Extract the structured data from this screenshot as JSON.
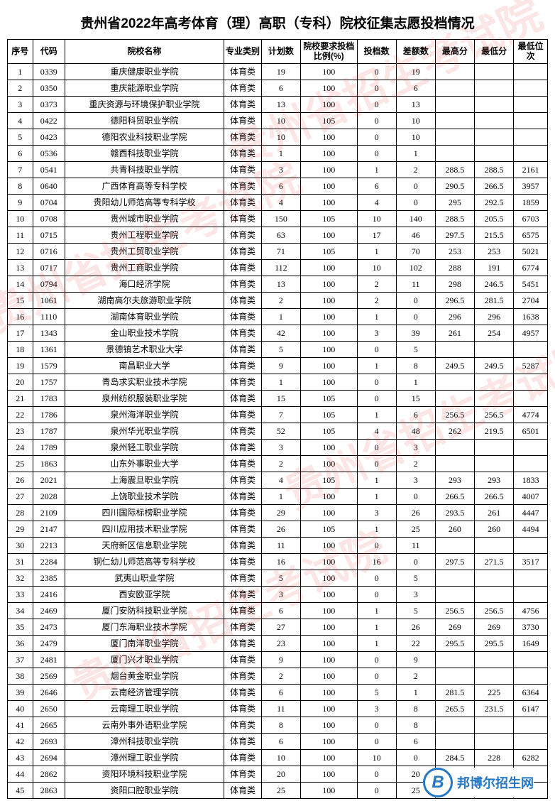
{
  "title": "贵州省2022年高考体育（理）高职（专科）院校征集志愿投档情况",
  "watermark_text": "贵州省招生考试院",
  "logo": {
    "letter": "B",
    "text": "邦博尔招生网"
  },
  "columns": [
    "序号",
    "代码",
    "院校名称",
    "专业类别",
    "计划数",
    "院校要求投档比例(%)",
    "投档数",
    "差额数",
    "最高分",
    "最低分",
    "最低位次"
  ],
  "rows": [
    [
      "1",
      "0339",
      "重庆健康职业学院",
      "体育类",
      "19",
      "100",
      "0",
      "19",
      "",
      "",
      ""
    ],
    [
      "2",
      "0350",
      "重庆能源职业学院",
      "体育类",
      "6",
      "100",
      "0",
      "6",
      "",
      "",
      ""
    ],
    [
      "3",
      "0373",
      "重庆资源与环境保护职业学院",
      "体育类",
      "13",
      "100",
      "0",
      "13",
      "",
      "",
      ""
    ],
    [
      "4",
      "0422",
      "德阳科贸职业学院",
      "体育类",
      "10",
      "105",
      "0",
      "10",
      "",
      "",
      ""
    ],
    [
      "5",
      "0423",
      "德阳农业科技职业学院",
      "体育类",
      "10",
      "100",
      "0",
      "10",
      "",
      "",
      ""
    ],
    [
      "6",
      "0536",
      "赣西科技职业学院",
      "体育类",
      "1",
      "100",
      "0",
      "1",
      "",
      "",
      ""
    ],
    [
      "7",
      "0541",
      "共青科技职业学院",
      "体育类",
      "3",
      "100",
      "1",
      "2",
      "288.5",
      "288.5",
      "2161"
    ],
    [
      "8",
      "0640",
      "广西体育高等专科学校",
      "体育类",
      "6",
      "100",
      "6",
      "0",
      "290.5",
      "266.5",
      "3957"
    ],
    [
      "9",
      "0704",
      "贵阳幼儿师范高等专科学校",
      "体育类",
      "4",
      "100",
      "4",
      "0",
      "295",
      "292.5",
      "1859"
    ],
    [
      "10",
      "0708",
      "贵州城市职业学院",
      "体育类",
      "150",
      "105",
      "10",
      "140",
      "288.5",
      "205.5",
      "6703"
    ],
    [
      "11",
      "0715",
      "贵州工程职业学院",
      "体育类",
      "63",
      "100",
      "17",
      "46",
      "297.5",
      "215.5",
      "6575"
    ],
    [
      "12",
      "0716",
      "贵州工贸职业学院",
      "体育类",
      "71",
      "105",
      "1",
      "70",
      "253",
      "253",
      "5021"
    ],
    [
      "13",
      "0717",
      "贵州工商职业学院",
      "体育类",
      "112",
      "100",
      "10",
      "102",
      "288",
      "191",
      "6774"
    ],
    [
      "14",
      "0794",
      "海口经济学院",
      "体育类",
      "13",
      "100",
      "2",
      "11",
      "298",
      "246.5",
      "5451"
    ],
    [
      "15",
      "1061",
      "湖南高尔夫旅游职业学院",
      "体育类",
      "2",
      "100",
      "2",
      "0",
      "296.5",
      "281.5",
      "2704"
    ],
    [
      "16",
      "1110",
      "湖南体育职业学院",
      "体育类",
      "1",
      "100",
      "1",
      "0",
      "296",
      "296",
      "1638"
    ],
    [
      "17",
      "1343",
      "金山职业技术学院",
      "体育类",
      "42",
      "100",
      "3",
      "39",
      "261",
      "254",
      "4957"
    ],
    [
      "18",
      "1361",
      "景德镇艺术职业大学",
      "体育类",
      "5",
      "100",
      "0",
      "5",
      "",
      "",
      ""
    ],
    [
      "19",
      "1579",
      "南昌职业大学",
      "体育类",
      "9",
      "100",
      "1",
      "8",
      "249.5",
      "249.5",
      "5287"
    ],
    [
      "20",
      "1757",
      "青岛求实职业技术学院",
      "体育类",
      "1",
      "100",
      "0",
      "1",
      "",
      "",
      ""
    ],
    [
      "21",
      "1783",
      "泉州纺织服装职业学院",
      "体育类",
      "15",
      "105",
      "0",
      "15",
      "",
      "",
      ""
    ],
    [
      "22",
      "1786",
      "泉州海洋职业学院",
      "体育类",
      "7",
      "105",
      "1",
      "6",
      "256.5",
      "256.5",
      "4774"
    ],
    [
      "23",
      "1787",
      "泉州华光职业学院",
      "体育类",
      "52",
      "105",
      "4",
      "48",
      "262",
      "219.5",
      "6501"
    ],
    [
      "24",
      "1789",
      "泉州轻工职业学院",
      "体育类",
      "3",
      "100",
      "0",
      "3",
      "",
      "",
      ""
    ],
    [
      "25",
      "1863",
      "山东外事职业大学",
      "体育类",
      "2",
      "100",
      "0",
      "2",
      "",
      "",
      ""
    ],
    [
      "26",
      "2021",
      "上海震旦职业学院",
      "体育类",
      "4",
      "105",
      "1",
      "3",
      "293",
      "293",
      "1833"
    ],
    [
      "27",
      "2028",
      "上饶职业技术学院",
      "体育类",
      "1",
      "100",
      "1",
      "0",
      "266.5",
      "266.5",
      "4007"
    ],
    [
      "28",
      "2109",
      "四川国际标榜职业学院",
      "体育类",
      "29",
      "100",
      "3",
      "26",
      "293.5",
      "261",
      "4447"
    ],
    [
      "29",
      "2147",
      "四川应用技术职业学院",
      "体育类",
      "26",
      "105",
      "1",
      "25",
      "260",
      "260",
      "4494"
    ],
    [
      "30",
      "2213",
      "天府新区信息职业学院",
      "体育类",
      "11",
      "100",
      "0",
      "11",
      "",
      "",
      ""
    ],
    [
      "31",
      "2284",
      "铜仁幼儿师范高等专科学校",
      "体育类",
      "16",
      "100",
      "16",
      "0",
      "297.5",
      "271.5",
      "3517"
    ],
    [
      "32",
      "2385",
      "武夷山职业学院",
      "体育类",
      "5",
      "100",
      "0",
      "5",
      "",
      "",
      ""
    ],
    [
      "33",
      "2416",
      "西安欧亚学院",
      "体育类",
      "3",
      "100",
      "0",
      "3",
      "",
      "",
      ""
    ],
    [
      "34",
      "2469",
      "厦门安防科技职业学院",
      "体育类",
      "6",
      "100",
      "1",
      "5",
      "256.5",
      "256.5",
      "4756"
    ],
    [
      "35",
      "2473",
      "厦门东海职业技术学院",
      "体育类",
      "27",
      "100",
      "1",
      "26",
      "269",
      "269",
      "3730"
    ],
    [
      "36",
      "2479",
      "厦门南洋职业学院",
      "体育类",
      "23",
      "100",
      "1",
      "22",
      "295.5",
      "295.5",
      "1649"
    ],
    [
      "37",
      "2481",
      "厦门兴才职业学院",
      "体育类",
      "9",
      "100",
      "0",
      "9",
      "",
      "",
      ""
    ],
    [
      "38",
      "2569",
      "烟台黄金职业学院",
      "体育类",
      "2",
      "100",
      "0",
      "2",
      "",
      "",
      ""
    ],
    [
      "39",
      "2646",
      "云南经济管理学院",
      "体育类",
      "6",
      "100",
      "5",
      "1",
      "281.5",
      "225",
      "6364"
    ],
    [
      "40",
      "2650",
      "云南理工职业学院",
      "体育类",
      "11",
      "100",
      "3",
      "8",
      "265.5",
      "231.5",
      "6147"
    ],
    [
      "41",
      "2665",
      "云南外事外语职业学院",
      "体育类",
      "8",
      "100",
      "0",
      "8",
      "",
      "",
      ""
    ],
    [
      "42",
      "2693",
      "漳州科技职业学院",
      "体育类",
      "6",
      "100",
      "0",
      "6",
      "",
      "",
      ""
    ],
    [
      "43",
      "2694",
      "漳州理工职业学院",
      "体育类",
      "10",
      "100",
      "10",
      "0",
      "284.5",
      "228",
      "6282"
    ],
    [
      "44",
      "2862",
      "资阳环境科技职业学院",
      "体育类",
      "20",
      "100",
      "0",
      "20",
      "",
      "",
      ""
    ],
    [
      "45",
      "2863",
      "资阳口腔职业学院",
      "体育类",
      "25",
      "100",
      "0",
      "25",
      "",
      "",
      ""
    ]
  ]
}
